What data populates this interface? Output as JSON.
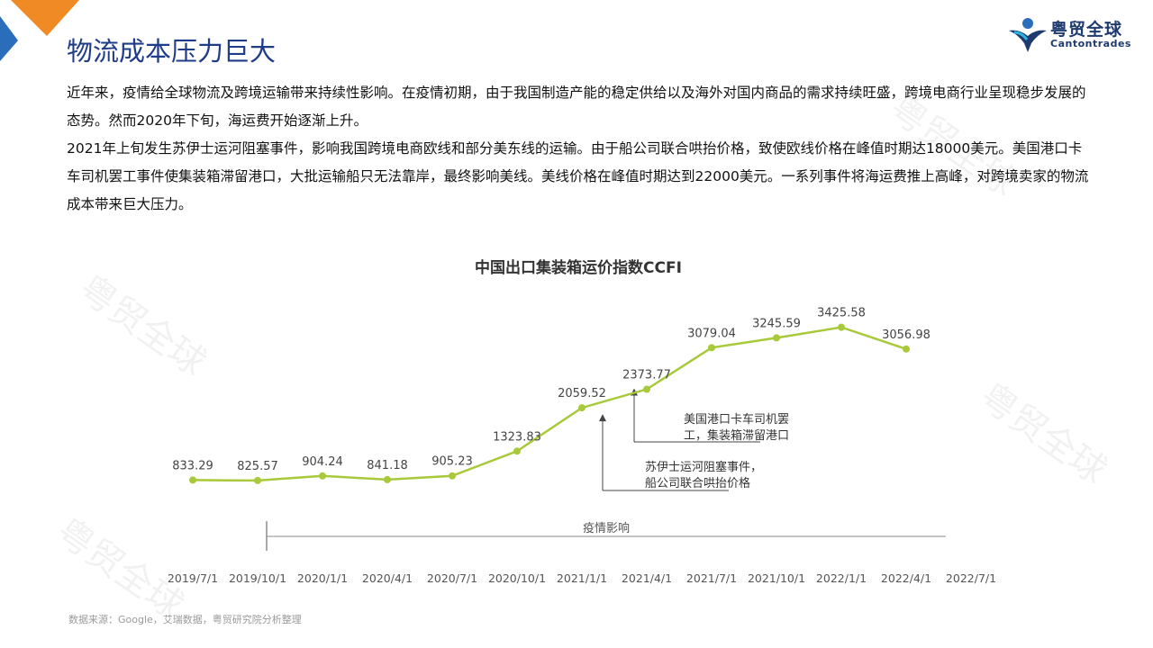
{
  "header": {
    "title": "物流成本压力巨大",
    "logo_cn": "粤贸全球",
    "logo_en": "Cantontrades"
  },
  "body": {
    "p1": "近年来，疫情给全球物流及跨境运输带来持续性影响。在疫情初期，由于我国制造产能的稳定供给以及海外对国内商品的需求持续旺盛，跨境电商行业呈现稳步发展的态势。然而2020年下旬，海运费开始逐渐上升。",
    "p2": "2021年上旬发生苏伊士运河阻塞事件，影响我国跨境电商欧线和部分美东线的运输。由于船公司联合哄抬价格，致使欧线价格在峰值时期达18000美元。美国港口卡车司机罢工事件使集装箱滞留港口，大批运输船只无法靠岸，最终影响美线。美线价格在峰值时期达到22000美元。一系列事件将海运费推上高峰，对跨境卖家的物流成本带来巨大压力。"
  },
  "watermark": "粤贸全球",
  "colors": {
    "title": "#1f3c88",
    "line": "#a8c93a",
    "accent_orange": "#f08a24",
    "accent_blue": "#2a6ebb"
  },
  "chart_data": {
    "type": "line",
    "title": "中国出口集装箱运价指数CCFI",
    "xlabel": "",
    "ylabel": "",
    "x_ticks": [
      "2019/7/1",
      "2019/10/1",
      "2020/1/1",
      "2020/4/1",
      "2020/7/1",
      "2020/10/1",
      "2021/1/1",
      "2021/4/1",
      "2021/7/1",
      "2021/10/1",
      "2022/1/1",
      "2022/4/1",
      "2022/7/1"
    ],
    "ylim": [
      0,
      4000
    ],
    "grid": false,
    "series": [
      {
        "points": [
          {
            "x": "2019/7/1",
            "y": 833.29
          },
          {
            "x": "2019/10/1",
            "y": 825.57
          },
          {
            "x": "2020/1/1",
            "y": 904.24
          },
          {
            "x": "2020/4/1",
            "y": 841.18
          },
          {
            "x": "2020/7/1",
            "y": 905.23
          },
          {
            "x": "2020/10/1",
            "y": 1323.83
          },
          {
            "x": "2021/1/1",
            "y": 2059.52
          },
          {
            "x": "2021/4/1",
            "y": 2373.77
          },
          {
            "x": "2021/7/1",
            "y": 3079.04
          },
          {
            "x": "2021/10/1",
            "y": 3245.59
          },
          {
            "x": "2022/1/1",
            "y": 3425.58
          },
          {
            "x": "2022/4/1",
            "y": 3056.98
          }
        ]
      }
    ],
    "annotations": [
      {
        "x": "2021/1/1",
        "text_lines": [
          "苏伊士运河阻塞事件，",
          "船公司联合哄抬价格"
        ]
      },
      {
        "x": "2021/4/1",
        "text_lines": [
          "美国港口卡车司机罢",
          "工，集装箱滞留港口"
        ]
      }
    ],
    "period": {
      "from": "2019/10/1",
      "to": "2022/7/1",
      "label": "疫情影响"
    }
  },
  "source": "数据来源：Google，艾瑞数据，粤贸研究院分析整理"
}
